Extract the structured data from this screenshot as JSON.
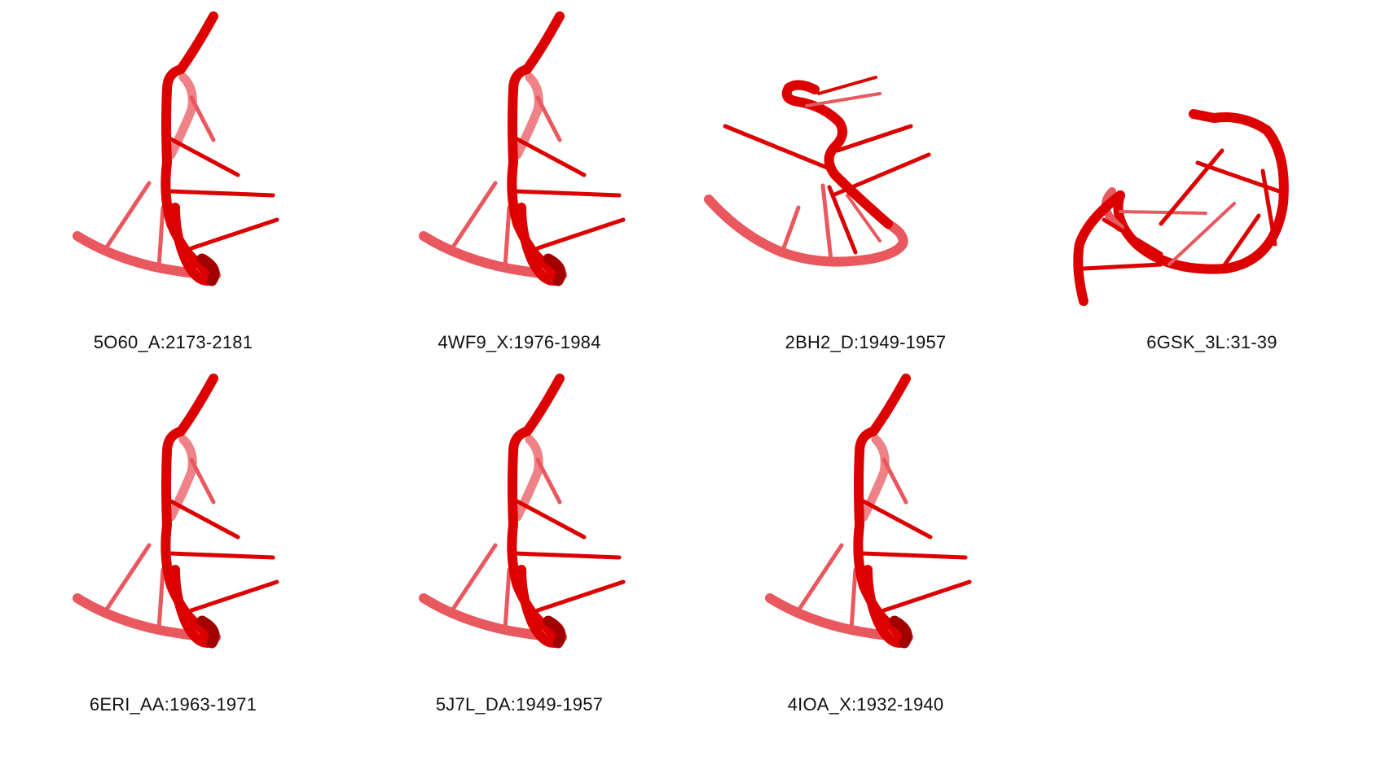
{
  "panels": [
    {
      "label": "5O60_A:2173-2181",
      "shape": "hairpin"
    },
    {
      "label": "4WF9_X:1976-1984",
      "shape": "hairpin"
    },
    {
      "label": "2BH2_D:1949-1957",
      "shape": "kinked"
    },
    {
      "label": "6GSK_3L:31-39",
      "shape": "loop"
    },
    {
      "label": "6ERI_AA:1963-1971",
      "shape": "hairpin"
    },
    {
      "label": "5J7L_DA:1949-1957",
      "shape": "hairpin"
    },
    {
      "label": "4IOA_X:1932-1940",
      "shape": "hairpin"
    }
  ],
  "colors": {
    "backbone": "#dd0000",
    "backbone_dark": "#a30000",
    "backbone_faded": "#e8585e",
    "background": "#ffffff"
  }
}
